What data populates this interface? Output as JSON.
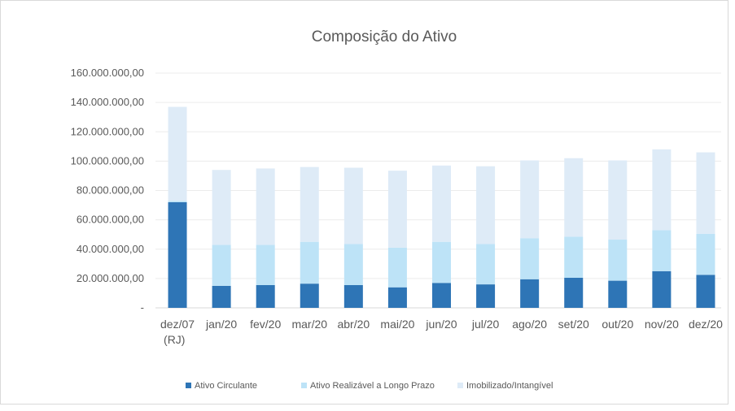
{
  "chart_data": {
    "type": "bar",
    "stacked": true,
    "title": "Composição do Ativo",
    "xlabel": "",
    "ylabel": "",
    "categories": [
      "dez/07 (RJ)",
      "jan/20",
      "fev/20",
      "mar/20",
      "abr/20",
      "mai/20",
      "jun/20",
      "jul/20",
      "ago/20",
      "set/20",
      "out/20",
      "nov/20",
      "dez/20"
    ],
    "category_lines": [
      [
        "dez/07",
        "(RJ)"
      ],
      [
        "jan/20"
      ],
      [
        "fev/20"
      ],
      [
        "mar/20"
      ],
      [
        "abr/20"
      ],
      [
        "mai/20"
      ],
      [
        "jun/20"
      ],
      [
        "jul/20"
      ],
      [
        "ago/20"
      ],
      [
        "set/20"
      ],
      [
        "out/20"
      ],
      [
        "nov/20"
      ],
      [
        "dez/20"
      ]
    ],
    "series": [
      {
        "name": "Ativo Circulante",
        "color": "#2e75b6",
        "values": [
          72000000,
          15000000,
          15500000,
          16500000,
          15500000,
          14000000,
          17000000,
          16000000,
          19500000,
          20500000,
          18500000,
          25000000,
          22500000
        ]
      },
      {
        "name": "Ativo Realizável a Longo Prazo",
        "color": "#bde3f7",
        "values": [
          1000000,
          28000000,
          27500000,
          28500000,
          28000000,
          27000000,
          28000000,
          27500000,
          28000000,
          28000000,
          28000000,
          28000000,
          28000000
        ]
      },
      {
        "name": "Imobilizado/Intangível",
        "color": "#deebf7",
        "values": [
          64000000,
          51000000,
          52000000,
          51000000,
          52000000,
          52500000,
          52000000,
          53000000,
          53000000,
          53500000,
          54000000,
          55000000,
          55500000
        ]
      }
    ],
    "ylim": [
      0,
      160000000
    ],
    "yticks": [
      {
        "value": 0,
        "label": "-"
      },
      {
        "value": 20000000,
        "label": "20.000.000,00"
      },
      {
        "value": 40000000,
        "label": "40.000.000,00"
      },
      {
        "value": 60000000,
        "label": "60.000.000,00"
      },
      {
        "value": 80000000,
        "label": "80.000.000,00"
      },
      {
        "value": 100000000,
        "label": "100.000.000,00"
      },
      {
        "value": 120000000,
        "label": "120.000.000,00"
      },
      {
        "value": 140000000,
        "label": "140.000.000,00"
      },
      {
        "value": 160000000,
        "label": "160.000.000,00"
      }
    ],
    "grid": true,
    "legend_position": "bottom"
  }
}
